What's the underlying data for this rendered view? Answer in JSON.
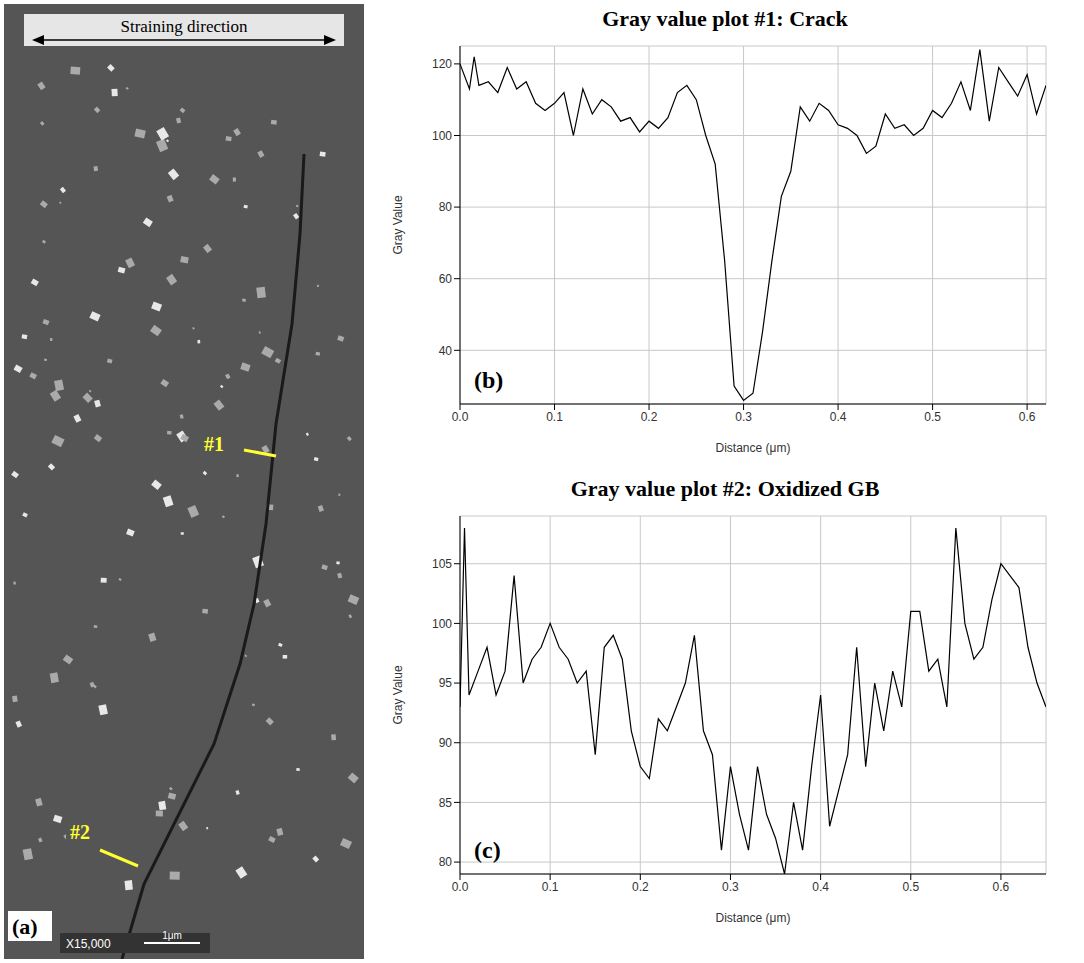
{
  "image": {
    "panel_label": "(a)",
    "arrow_label": "Straining direction",
    "markers": [
      "#1",
      "#2"
    ],
    "magnification": "X15,000",
    "scale_bar": "1μm"
  },
  "chart_data": [
    {
      "type": "line",
      "title": "Gray value plot #1: Crack",
      "panel_label": "(b)",
      "x_label": "Distance (μm)",
      "y_label": "Gray Value",
      "color": "#000000",
      "grid": true,
      "x": [
        0,
        0.01,
        0.015,
        0.02,
        0.03,
        0.04,
        0.05,
        0.06,
        0.07,
        0.08,
        0.09,
        0.1,
        0.11,
        0.12,
        0.13,
        0.14,
        0.15,
        0.16,
        0.17,
        0.18,
        0.19,
        0.2,
        0.21,
        0.22,
        0.23,
        0.24,
        0.25,
        0.26,
        0.27,
        0.28,
        0.29,
        0.3,
        0.31,
        0.32,
        0.33,
        0.34,
        0.35,
        0.36,
        0.37,
        0.38,
        0.39,
        0.4,
        0.41,
        0.42,
        0.43,
        0.44,
        0.45,
        0.46,
        0.47,
        0.48,
        0.49,
        0.5,
        0.51,
        0.52,
        0.53,
        0.54,
        0.55,
        0.56,
        0.57,
        0.58,
        0.59,
        0.6,
        0.61,
        0.62
      ],
      "values": [
        120,
        113,
        122,
        114,
        115,
        112,
        119,
        113,
        115,
        109,
        107,
        109,
        112,
        100,
        113,
        106,
        110,
        108,
        104,
        105,
        101,
        104,
        102,
        105,
        112,
        114,
        110,
        100,
        92,
        65,
        30,
        26,
        28,
        45,
        65,
        83,
        90,
        108,
        104,
        109,
        107,
        103,
        102,
        100,
        95,
        97,
        106,
        102,
        103,
        100,
        102,
        107,
        105,
        109,
        115,
        107,
        124,
        104,
        119,
        115,
        111,
        117,
        106,
        114
      ],
      "xlim": [
        0,
        0.62
      ],
      "xticks": [
        {
          "value": 0,
          "label": "0.0"
        },
        0.1,
        0.2,
        0.3,
        0.4,
        0.5,
        0.6
      ],
      "ylim": [
        25,
        125
      ],
      "yticks": [
        40,
        60,
        80,
        100,
        120
      ]
    },
    {
      "type": "line",
      "title": "Gray value plot #2: Oxidized GB",
      "panel_label": "(c)",
      "x_label": "Distance (μm)",
      "y_label": "Gray Value",
      "color": "#000000",
      "grid": true,
      "x": [
        0,
        0.005,
        0.01,
        0.02,
        0.03,
        0.04,
        0.05,
        0.06,
        0.07,
        0.08,
        0.09,
        0.1,
        0.11,
        0.12,
        0.13,
        0.14,
        0.15,
        0.16,
        0.17,
        0.18,
        0.19,
        0.2,
        0.21,
        0.22,
        0.23,
        0.24,
        0.25,
        0.26,
        0.27,
        0.28,
        0.29,
        0.3,
        0.31,
        0.32,
        0.33,
        0.34,
        0.35,
        0.36,
        0.37,
        0.38,
        0.39,
        0.4,
        0.41,
        0.42,
        0.43,
        0.44,
        0.45,
        0.46,
        0.47,
        0.48,
        0.49,
        0.5,
        0.51,
        0.52,
        0.53,
        0.54,
        0.55,
        0.56,
        0.57,
        0.58,
        0.59,
        0.6,
        0.61,
        0.62,
        0.63,
        0.64,
        0.65
      ],
      "values": [
        93,
        108,
        94,
        96,
        98,
        94,
        96,
        104,
        95,
        97,
        98,
        100,
        98,
        97,
        95,
        96,
        89,
        98,
        99,
        97,
        91,
        88,
        87,
        92,
        91,
        93,
        95,
        99,
        91,
        89,
        81,
        88,
        84,
        81,
        88,
        84,
        82,
        79,
        85,
        81,
        88,
        94,
        83,
        86,
        89,
        98,
        88,
        95,
        91,
        96,
        93,
        101,
        101,
        96,
        97,
        93,
        108,
        100,
        97,
        98,
        102,
        105,
        104,
        103,
        98,
        95,
        93
      ],
      "xlim": [
        0,
        0.65
      ],
      "xticks": [
        {
          "value": 0,
          "label": "0.0"
        },
        0.1,
        0.2,
        0.3,
        0.4,
        0.5,
        0.6
      ],
      "ylim": [
        79,
        109
      ],
      "yticks": [
        80,
        85,
        90,
        95,
        100,
        105
      ]
    }
  ]
}
